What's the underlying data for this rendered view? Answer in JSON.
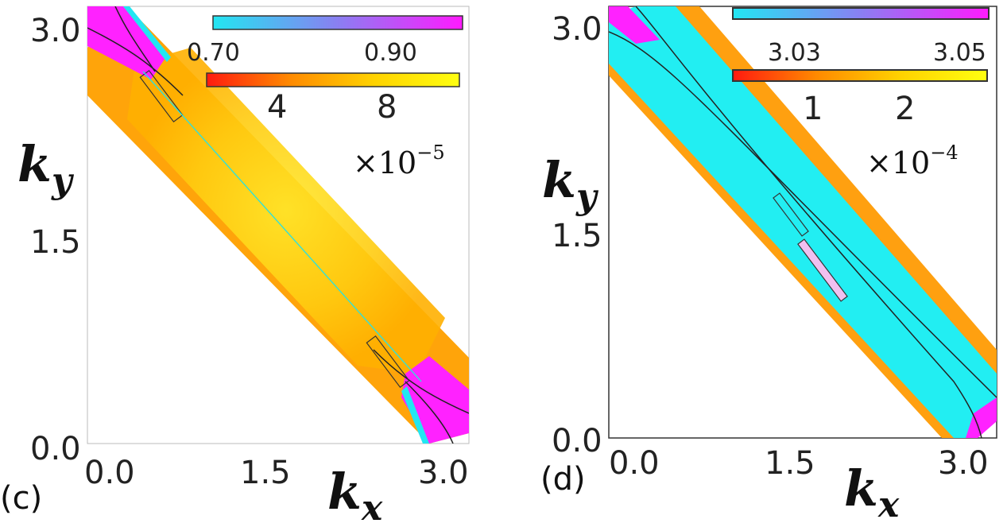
{
  "chart_data": [
    {
      "type": "heatmap",
      "panel_label": "(c)",
      "xlabel": "k",
      "xlabel_sub": "x",
      "ylabel": "k",
      "ylabel_sub": "y",
      "xlim": [
        0.0,
        3.14
      ],
      "ylim": [
        0.0,
        3.14
      ],
      "x_ticks": [
        "0.0",
        "1.5",
        "3.0"
      ],
      "y_ticks": [
        "0.0",
        "1.5",
        "3.0"
      ],
      "band": "diagonal strip along k_y = π − k_x",
      "colorbar_magenta": {
        "colors": [
          "#22e6f2",
          "#8a7ff2",
          "#ff1aff"
        ],
        "ticks": [
          "0.70",
          "0.90"
        ],
        "range": [
          0.65,
          1.0
        ]
      },
      "colorbar_heat": {
        "colors": [
          "#ff1a10",
          "#ff8a00",
          "#ffd200",
          "#ffff10"
        ],
        "ticks": [
          "4",
          "8"
        ],
        "range": [
          1,
          11
        ],
        "multiplier": "×10",
        "exponent": "−5"
      }
    },
    {
      "type": "heatmap",
      "panel_label": "(d)",
      "xlabel": "k",
      "xlabel_sub": "x",
      "ylabel": "k",
      "ylabel_sub": "y",
      "xlim": [
        0.0,
        3.14
      ],
      "ylim": [
        0.0,
        3.14
      ],
      "x_ticks": [
        "0.0",
        "1.5",
        "3.0"
      ],
      "y_ticks": [
        "0.0",
        "1.5",
        "3.0"
      ],
      "band": "diagonal strip along k_y = π − k_x",
      "colorbar_magenta": {
        "colors": [
          "#22e6f2",
          "#8a7ff2",
          "#ff1aff"
        ],
        "ticks": [
          "3.03",
          "3.05"
        ],
        "range": [
          3.02,
          3.055
        ]
      },
      "colorbar_heat": {
        "colors": [
          "#ff1a10",
          "#ff8a00",
          "#ffd200",
          "#ffff10"
        ],
        "ticks": [
          "1",
          "2"
        ],
        "range": [
          0.3,
          2.7
        ],
        "multiplier": "×10",
        "exponent": "−4"
      }
    }
  ]
}
